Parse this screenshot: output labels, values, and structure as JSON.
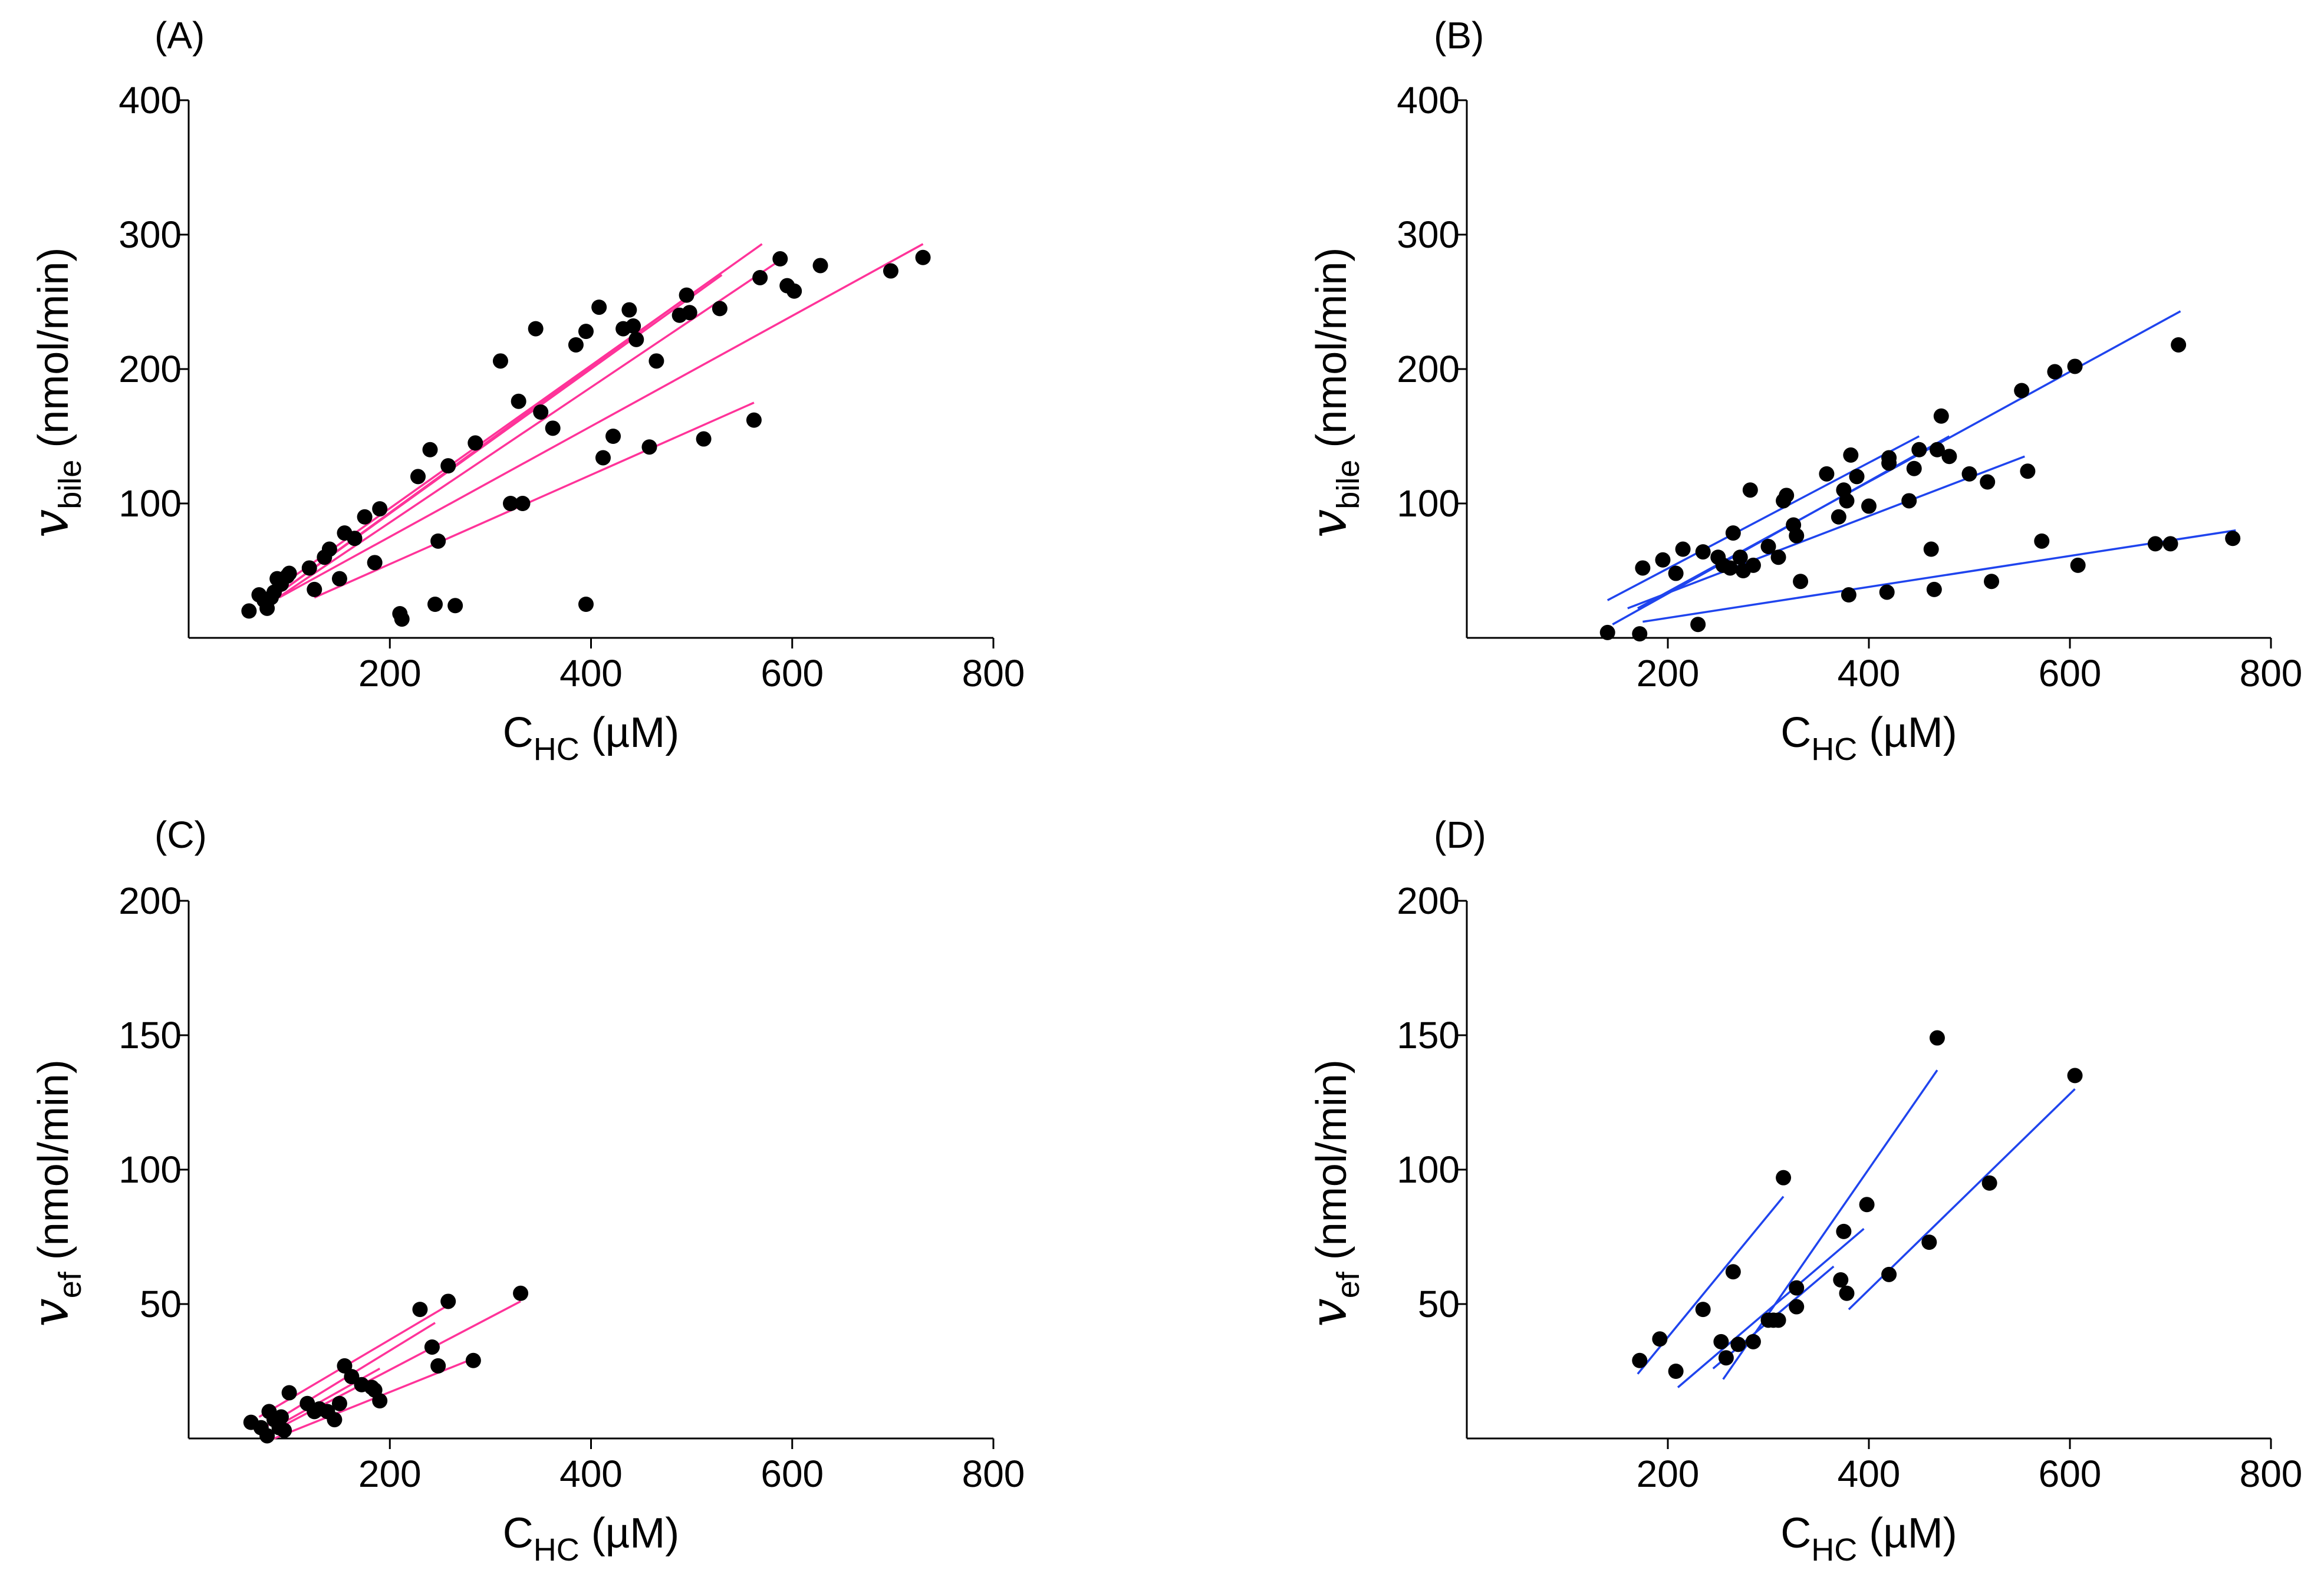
{
  "chart_data": [
    {
      "type": "scatter",
      "panel_label": "(A)",
      "xlabel": {
        "main": "C",
        "sub": "HC",
        "unit": " (µM)"
      },
      "ylabel": {
        "main": "v",
        "sub": "bile",
        "unit": " (nmol/min)"
      },
      "xlim": [
        0,
        800
      ],
      "ylim": [
        0,
        400
      ],
      "xticks": [
        200,
        400,
        600,
        800
      ],
      "yticks": [
        100,
        200,
        300,
        400
      ],
      "line_color": "#ff3399",
      "points": [
        [
          60,
          20
        ],
        [
          70,
          32
        ],
        [
          75,
          28
        ],
        [
          78,
          22
        ],
        [
          82,
          30
        ],
        [
          85,
          34
        ],
        [
          88,
          44
        ],
        [
          92,
          40
        ],
        [
          98,
          46
        ],
        [
          100,
          48
        ],
        [
          120,
          52
        ],
        [
          125,
          36
        ],
        [
          135,
          60
        ],
        [
          140,
          66
        ],
        [
          150,
          44
        ],
        [
          155,
          78
        ],
        [
          165,
          74
        ],
        [
          175,
          90
        ],
        [
          185,
          56
        ],
        [
          190,
          96
        ],
        [
          210,
          18
        ],
        [
          212,
          14
        ],
        [
          228,
          120
        ],
        [
          240,
          140
        ],
        [
          245,
          25
        ],
        [
          248,
          72
        ],
        [
          258,
          128
        ],
        [
          265,
          24
        ],
        [
          285,
          145
        ],
        [
          310,
          206
        ],
        [
          320,
          100
        ],
        [
          328,
          176
        ],
        [
          332,
          100
        ],
        [
          345,
          230
        ],
        [
          350,
          168
        ],
        [
          362,
          156
        ],
        [
          385,
          218
        ],
        [
          395,
          228
        ],
        [
          395,
          25
        ],
        [
          408,
          246
        ],
        [
          412,
          134
        ],
        [
          422,
          150
        ],
        [
          432,
          230
        ],
        [
          438,
          244
        ],
        [
          442,
          232
        ],
        [
          445,
          222
        ],
        [
          458,
          142
        ],
        [
          465,
          206
        ],
        [
          488,
          240
        ],
        [
          495,
          255
        ],
        [
          498,
          242
        ],
        [
          512,
          148
        ],
        [
          528,
          245
        ],
        [
          562,
          162
        ],
        [
          568,
          268
        ],
        [
          588,
          282
        ],
        [
          595,
          262
        ],
        [
          602,
          258
        ],
        [
          628,
          277
        ],
        [
          698,
          273
        ],
        [
          730,
          283
        ]
      ],
      "lines": [
        [
          [
            75,
            30
          ],
          [
            570,
            293
          ]
        ],
        [
          [
            80,
            28
          ],
          [
            530,
            270
          ]
        ],
        [
          [
            80,
            28
          ],
          [
            500,
            256
          ]
        ],
        [
          [
            85,
            28
          ],
          [
            590,
            282
          ]
        ],
        [
          [
            90,
            30
          ],
          [
            730,
            293
          ]
        ],
        [
          [
            125,
            30
          ],
          [
            562,
            175
          ]
        ]
      ]
    },
    {
      "type": "scatter",
      "panel_label": "(B)",
      "xlabel": {
        "main": "C",
        "sub": "HC",
        "unit": " (µM)"
      },
      "ylabel": {
        "main": "v",
        "sub": "bile",
        "unit": " (nmol/min)"
      },
      "xlim": [
        0,
        800
      ],
      "ylim": [
        0,
        400
      ],
      "xticks": [
        200,
        400,
        600,
        800
      ],
      "yticks": [
        100,
        200,
        300,
        400
      ],
      "line_color": "#1f44ee",
      "points": [
        [
          140,
          4
        ],
        [
          172,
          3
        ],
        [
          175,
          52
        ],
        [
          195,
          58
        ],
        [
          208,
          48
        ],
        [
          215,
          66
        ],
        [
          230,
          10
        ],
        [
          235,
          64
        ],
        [
          250,
          60
        ],
        [
          255,
          54
        ],
        [
          262,
          52
        ],
        [
          265,
          78
        ],
        [
          272,
          60
        ],
        [
          275,
          50
        ],
        [
          282,
          110
        ],
        [
          285,
          54
        ],
        [
          300,
          68
        ],
        [
          310,
          60
        ],
        [
          315,
          102
        ],
        [
          318,
          106
        ],
        [
          325,
          84
        ],
        [
          328,
          76
        ],
        [
          332,
          42
        ],
        [
          358,
          122
        ],
        [
          370,
          90
        ],
        [
          375,
          110
        ],
        [
          378,
          102
        ],
        [
          380,
          32
        ],
        [
          382,
          136
        ],
        [
          388,
          120
        ],
        [
          400,
          98
        ],
        [
          418,
          34
        ],
        [
          420,
          130
        ],
        [
          420,
          134
        ],
        [
          440,
          102
        ],
        [
          445,
          126
        ],
        [
          450,
          140
        ],
        [
          462,
          66
        ],
        [
          465,
          36
        ],
        [
          468,
          140
        ],
        [
          472,
          165
        ],
        [
          480,
          135
        ],
        [
          500,
          122
        ],
        [
          518,
          116
        ],
        [
          522,
          42
        ],
        [
          552,
          184
        ],
        [
          558,
          124
        ],
        [
          572,
          72
        ],
        [
          585,
          198
        ],
        [
          605,
          202
        ],
        [
          608,
          54
        ],
        [
          685,
          70
        ],
        [
          700,
          70
        ],
        [
          708,
          218
        ],
        [
          762,
          74
        ]
      ],
      "lines": [
        [
          [
            140,
            28
          ],
          [
            450,
            150
          ]
        ],
        [
          [
            145,
            10
          ],
          [
            480,
            150
          ]
        ],
        [
          [
            170,
            22
          ],
          [
            710,
            243
          ]
        ],
        [
          [
            160,
            22
          ],
          [
            555,
            135
          ]
        ],
        [
          [
            175,
            12
          ],
          [
            765,
            80
          ]
        ]
      ]
    },
    {
      "type": "scatter",
      "panel_label": "(C)",
      "xlabel": {
        "main": "C",
        "sub": "HC",
        "unit": " (µM)"
      },
      "ylabel": {
        "main": "v",
        "sub": "ef",
        "unit": " (nmol/min)"
      },
      "xlim": [
        0,
        800
      ],
      "ylim": [
        0,
        200
      ],
      "xticks": [
        200,
        400,
        600,
        800
      ],
      "yticks": [
        50,
        100,
        150,
        200
      ],
      "line_color": "#ff3399",
      "points": [
        [
          62,
          6
        ],
        [
          72,
          4
        ],
        [
          78,
          1
        ],
        [
          80,
          10
        ],
        [
          85,
          7
        ],
        [
          90,
          4
        ],
        [
          92,
          8
        ],
        [
          95,
          3
        ],
        [
          100,
          17
        ],
        [
          118,
          13
        ],
        [
          125,
          10
        ],
        [
          130,
          11
        ],
        [
          138,
          10
        ],
        [
          145,
          7
        ],
        [
          150,
          13
        ],
        [
          155,
          27
        ],
        [
          162,
          23
        ],
        [
          172,
          20
        ],
        [
          182,
          19
        ],
        [
          185,
          18
        ],
        [
          190,
          14
        ],
        [
          230,
          48
        ],
        [
          242,
          34
        ],
        [
          248,
          27
        ],
        [
          258,
          51
        ],
        [
          283,
          29
        ],
        [
          330,
          54
        ]
      ],
      "lines": [
        [
          [
            70,
            8
          ],
          [
            260,
            50
          ]
        ],
        [
          [
            75,
            4
          ],
          [
            245,
            43
          ]
        ],
        [
          [
            80,
            2
          ],
          [
            330,
            51
          ]
        ],
        [
          [
            85,
            4
          ],
          [
            190,
            26
          ]
        ],
        [
          [
            85,
            0
          ],
          [
            285,
            30
          ]
        ]
      ]
    },
    {
      "type": "scatter",
      "panel_label": "(D)",
      "xlabel": {
        "main": "C",
        "sub": "HC",
        "unit": " (µM)"
      },
      "ylabel": {
        "main": "v",
        "sub": "ef",
        "unit": " (nmol/min)"
      },
      "xlim": [
        0,
        800
      ],
      "ylim": [
        0,
        200
      ],
      "xticks": [
        200,
        400,
        600,
        800
      ],
      "yticks": [
        50,
        100,
        150,
        200
      ],
      "line_color": "#1f44ee",
      "points": [
        [
          172,
          29
        ],
        [
          192,
          37
        ],
        [
          208,
          25
        ],
        [
          235,
          48
        ],
        [
          253,
          36
        ],
        [
          258,
          30
        ],
        [
          265,
          62
        ],
        [
          270,
          35
        ],
        [
          285,
          36
        ],
        [
          300,
          44
        ],
        [
          305,
          44
        ],
        [
          310,
          44
        ],
        [
          315,
          97
        ],
        [
          328,
          49
        ],
        [
          328,
          56
        ],
        [
          372,
          59
        ],
        [
          375,
          77
        ],
        [
          378,
          54
        ],
        [
          398,
          87
        ],
        [
          420,
          61
        ],
        [
          460,
          73
        ],
        [
          468,
          149
        ],
        [
          520,
          95
        ],
        [
          605,
          135
        ]
      ],
      "lines": [
        [
          [
            170,
            24
          ],
          [
            315,
            90
          ]
        ],
        [
          [
            210,
            19
          ],
          [
            395,
            78
          ]
        ],
        [
          [
            255,
            22
          ],
          [
            468,
            137
          ]
        ],
        [
          [
            245,
            26
          ],
          [
            365,
            64
          ]
        ],
        [
          [
            380,
            48
          ],
          [
            605,
            130
          ]
        ]
      ]
    }
  ]
}
